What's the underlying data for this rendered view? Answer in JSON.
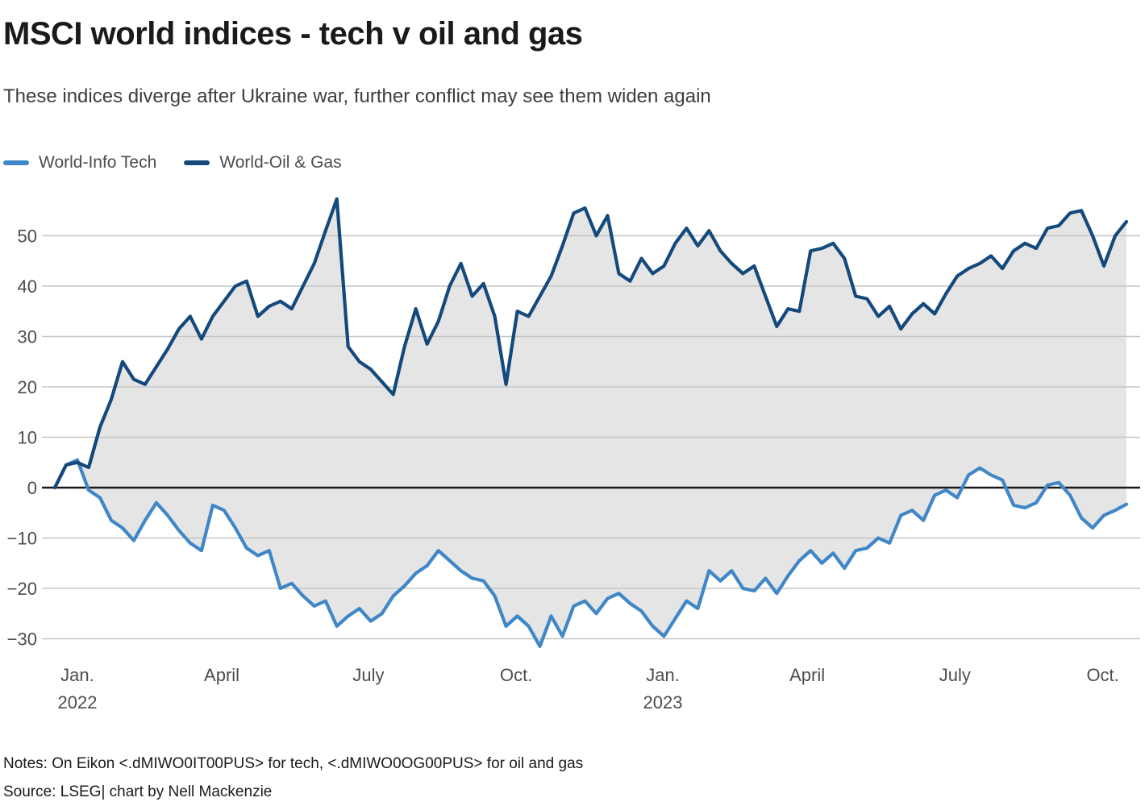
{
  "header": {
    "title": "MSCI world indices - tech v oil and gas",
    "subtitle": "These indices diverge after Ukraine war, further conflict may see them widen again"
  },
  "legend": {
    "items": [
      {
        "label": "World-Info Tech",
        "color": "#3f87c6"
      },
      {
        "label": "World-Oil & Gas",
        "color": "#14497c"
      }
    ]
  },
  "footer": {
    "notes": "Notes: On Eikon <.dMIWO0IT00PUS> for tech, <.dMIWO0OG00PUS> for oil and gas",
    "source": "Source: LSEG| chart by Nell Mackenzie"
  },
  "chart_data": {
    "type": "line",
    "title": "MSCI world indices - tech v oil and gas",
    "x_start": "2022-01-01",
    "x_end": "2023-10-28",
    "sampling": "weekly samples (96 points) read from the plotted daily curves, values in % change",
    "ylim": [
      -35,
      58.5
    ],
    "grid": "horizontal",
    "legend_position": "top-left",
    "grid_color": "#c6c6c6",
    "zero_line_color": "#1a1a1a",
    "fill_between": {
      "color": "#e5e5e5"
    },
    "yticks": [
      {
        "value": 50,
        "label": "50"
      },
      {
        "value": 40,
        "label": "40"
      },
      {
        "value": 30,
        "label": "30"
      },
      {
        "value": 20,
        "label": "20"
      },
      {
        "value": 10,
        "label": "10"
      },
      {
        "value": 0,
        "label": "0"
      },
      {
        "value": -10,
        "label": "−10"
      },
      {
        "value": -20,
        "label": "−20"
      },
      {
        "value": -30,
        "label": "−30"
      }
    ],
    "xticks": [
      {
        "week": 2.0,
        "label": "Jan.",
        "year": "2022"
      },
      {
        "week": 14.8,
        "label": "April"
      },
      {
        "week": 27.8,
        "label": "July"
      },
      {
        "week": 40.9,
        "label": "Oct."
      },
      {
        "week": 53.9,
        "label": "Jan.",
        "year": "2023"
      },
      {
        "week": 66.7,
        "label": "April"
      },
      {
        "week": 79.8,
        "label": "July"
      },
      {
        "week": 92.9,
        "label": "Oct."
      }
    ],
    "series": [
      {
        "name": "World-Info Tech",
        "color": "#3f87c6",
        "values": [
          0.0,
          4.5,
          5.5,
          -0.5,
          -2.0,
          -6.5,
          -8.0,
          -10.5,
          -6.5,
          -3.0,
          -5.5,
          -8.5,
          -11.0,
          -12.5,
          -3.5,
          -4.5,
          -8.0,
          -12.0,
          -13.5,
          -12.5,
          -20.0,
          -19.0,
          -21.5,
          -23.5,
          -22.5,
          -27.5,
          -25.5,
          -24.0,
          -26.5,
          -25.0,
          -21.5,
          -19.5,
          -17.0,
          -15.5,
          -12.5,
          -14.5,
          -16.5,
          -18.0,
          -18.5,
          -21.5,
          -27.5,
          -25.5,
          -27.5,
          -31.5,
          -25.5,
          -29.5,
          -23.5,
          -22.5,
          -25.0,
          -22.0,
          -21.0,
          -23.0,
          -24.5,
          -27.5,
          -29.5,
          -26.0,
          -22.5,
          -24.0,
          -16.5,
          -18.5,
          -16.5,
          -20.0,
          -20.5,
          -18.0,
          -21.0,
          -17.5,
          -14.5,
          -12.5,
          -15.0,
          -13.0,
          -16.0,
          -12.5,
          -12.0,
          -10.0,
          -11.0,
          -5.5,
          -4.5,
          -6.5,
          -1.5,
          -0.5,
          -2.0,
          2.5,
          3.9,
          2.5,
          1.5,
          -3.5,
          -4.0,
          -3.0,
          0.5,
          1.0,
          -1.5,
          -6.0,
          -8.0,
          -5.5,
          -4.5,
          -3.3
        ]
      },
      {
        "name": "World-Oil & Gas",
        "color": "#14497c",
        "values": [
          0.0,
          4.5,
          5.0,
          4.0,
          12.0,
          17.5,
          25.0,
          21.5,
          20.5,
          24.0,
          27.5,
          31.5,
          34.0,
          29.5,
          34.0,
          37.0,
          40.0,
          41.0,
          34.0,
          36.0,
          37.0,
          35.5,
          40.0,
          44.5,
          51.0,
          57.3,
          28.0,
          25.0,
          23.5,
          21.0,
          18.5,
          28.0,
          35.5,
          28.5,
          33.0,
          40.0,
          44.5,
          38.0,
          40.5,
          34.0,
          20.5,
          35.0,
          34.0,
          38.0,
          42.0,
          48.0,
          54.5,
          55.5,
          50.0,
          54.0,
          42.5,
          41.0,
          45.5,
          42.5,
          44.0,
          48.5,
          51.5,
          48.0,
          51.0,
          47.0,
          44.5,
          42.5,
          44.0,
          38.0,
          32.0,
          35.5,
          35.0,
          47.0,
          47.5,
          48.5,
          45.5,
          38.0,
          37.5,
          34.0,
          36.0,
          31.5,
          34.5,
          36.5,
          34.5,
          38.5,
          42.0,
          43.5,
          44.5,
          46.0,
          43.5,
          47.0,
          48.5,
          47.5,
          51.5,
          52.0,
          54.5,
          55.0,
          50.0,
          44.0,
          50.0,
          52.8
        ]
      }
    ]
  }
}
